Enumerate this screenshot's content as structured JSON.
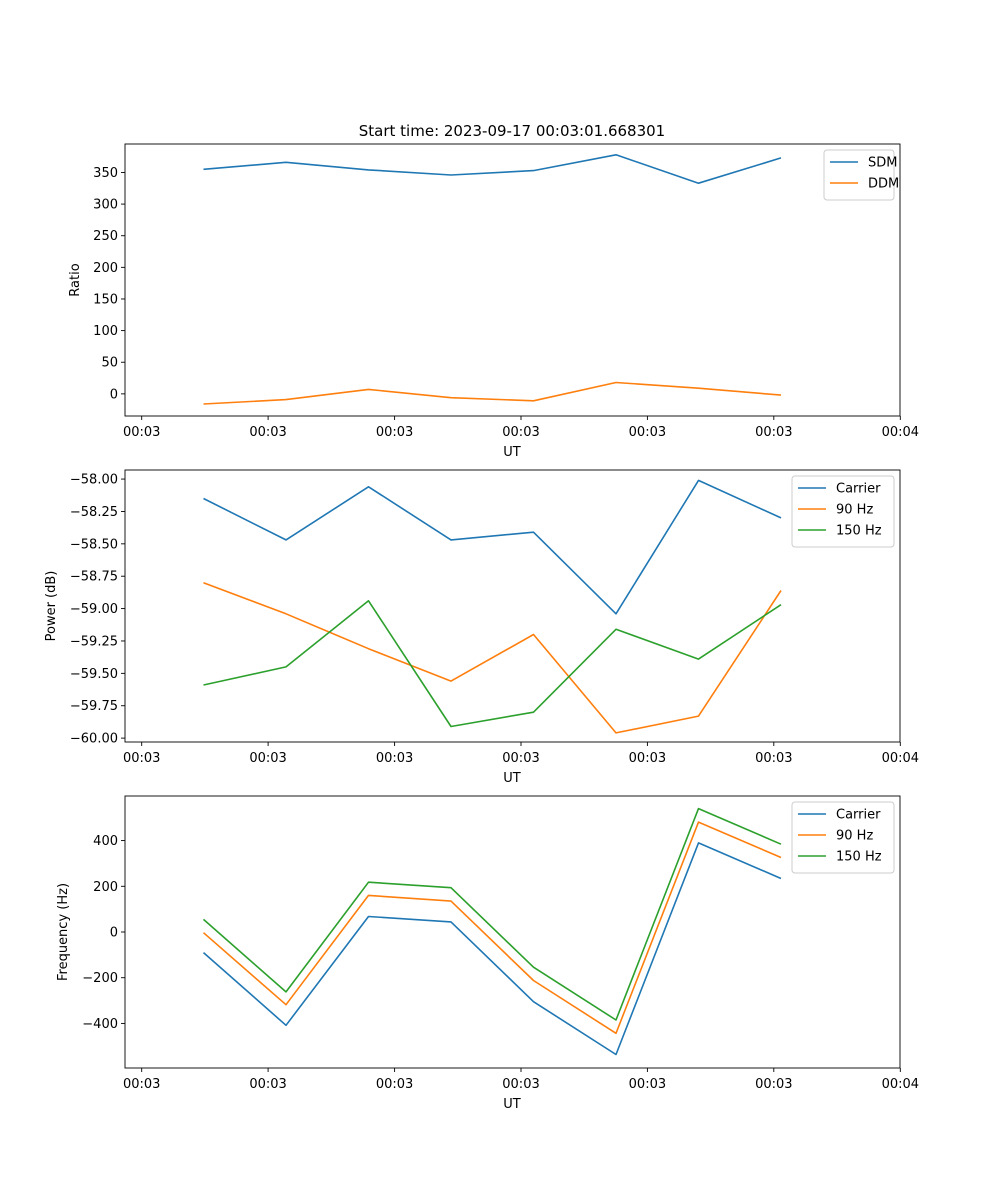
{
  "chart_data": [
    {
      "type": "line",
      "title": "Start time: 2023-09-17 00:03:01.668301",
      "xlabel": "UT",
      "ylabel": "Ratio",
      "x_tick_labels": [
        "00:03",
        "00:03",
        "00:03",
        "00:03",
        "00:03",
        "00:03",
        "00:04"
      ],
      "ylim": [
        -35,
        395
      ],
      "y_ticks": [
        0,
        50,
        100,
        150,
        200,
        250,
        300,
        350
      ],
      "y_tick_labels": [
        "0",
        "50",
        "100",
        "150",
        "200",
        "250",
        "300",
        "350"
      ],
      "legend_loc": "upper right",
      "x": [
        1,
        2,
        3,
        4,
        5,
        6,
        7,
        8
      ],
      "series": [
        {
          "name": "SDM",
          "color": "#1f77b4",
          "values": [
            355,
            366,
            354,
            346,
            353,
            378,
            333,
            373
          ]
        },
        {
          "name": "DDM",
          "color": "#ff7f0e",
          "values": [
            -16,
            -9,
            7,
            -6,
            -11,
            18,
            9,
            -2
          ]
        }
      ]
    },
    {
      "type": "line",
      "title": "",
      "xlabel": "UT",
      "ylabel": "Power (dB)",
      "x_tick_labels": [
        "00:03",
        "00:03",
        "00:03",
        "00:03",
        "00:03",
        "00:03",
        "00:04"
      ],
      "ylim": [
        -60.03,
        -57.93
      ],
      "y_ticks": [
        -60.0,
        -59.75,
        -59.5,
        -59.25,
        -59.0,
        -58.75,
        -58.5,
        -58.25,
        -58.0
      ],
      "y_tick_labels": [
        "−60.00",
        "−59.75",
        "−59.50",
        "−59.25",
        "−59.00",
        "−58.75",
        "−58.50",
        "−58.25",
        "−58.00"
      ],
      "legend_loc": "upper right",
      "x": [
        1,
        2,
        3,
        4,
        5,
        6,
        7,
        8
      ],
      "series": [
        {
          "name": "Carrier",
          "color": "#1f77b4",
          "values": [
            -58.15,
            -58.47,
            -58.06,
            -58.47,
            -58.41,
            -59.04,
            -58.01,
            -58.3
          ]
        },
        {
          "name": "90 Hz",
          "color": "#ff7f0e",
          "values": [
            -58.8,
            -59.04,
            -59.31,
            -59.56,
            -59.2,
            -59.96,
            -59.83,
            -58.86
          ]
        },
        {
          "name": "150 Hz",
          "color": "#2ca02c",
          "values": [
            -59.59,
            -59.45,
            -58.94,
            -59.91,
            -59.8,
            -59.16,
            -59.39,
            -58.97
          ]
        }
      ]
    },
    {
      "type": "line",
      "title": "",
      "xlabel": "UT",
      "ylabel": "Frequency (Hz)",
      "x_tick_labels": [
        "00:03",
        "00:03",
        "00:03",
        "00:03",
        "00:03",
        "00:03",
        "00:04"
      ],
      "ylim": [
        -595,
        595
      ],
      "y_ticks": [
        -400,
        -200,
        0,
        200,
        400
      ],
      "y_tick_labels": [
        "−400",
        "−200",
        "0",
        "200",
        "400"
      ],
      "legend_loc": "upper right",
      "x": [
        1,
        2,
        3,
        4,
        5,
        6,
        7,
        8
      ],
      "series": [
        {
          "name": "Carrier",
          "color": "#1f77b4",
          "values": [
            -90,
            -408,
            68,
            44,
            -305,
            -536,
            390,
            234
          ]
        },
        {
          "name": "90 Hz",
          "color": "#ff7f0e",
          "values": [
            -3,
            -318,
            160,
            135,
            -212,
            -443,
            481,
            326
          ]
        },
        {
          "name": "150 Hz",
          "color": "#2ca02c",
          "values": [
            55,
            -262,
            218,
            194,
            -154,
            -385,
            540,
            384
          ]
        }
      ]
    }
  ]
}
